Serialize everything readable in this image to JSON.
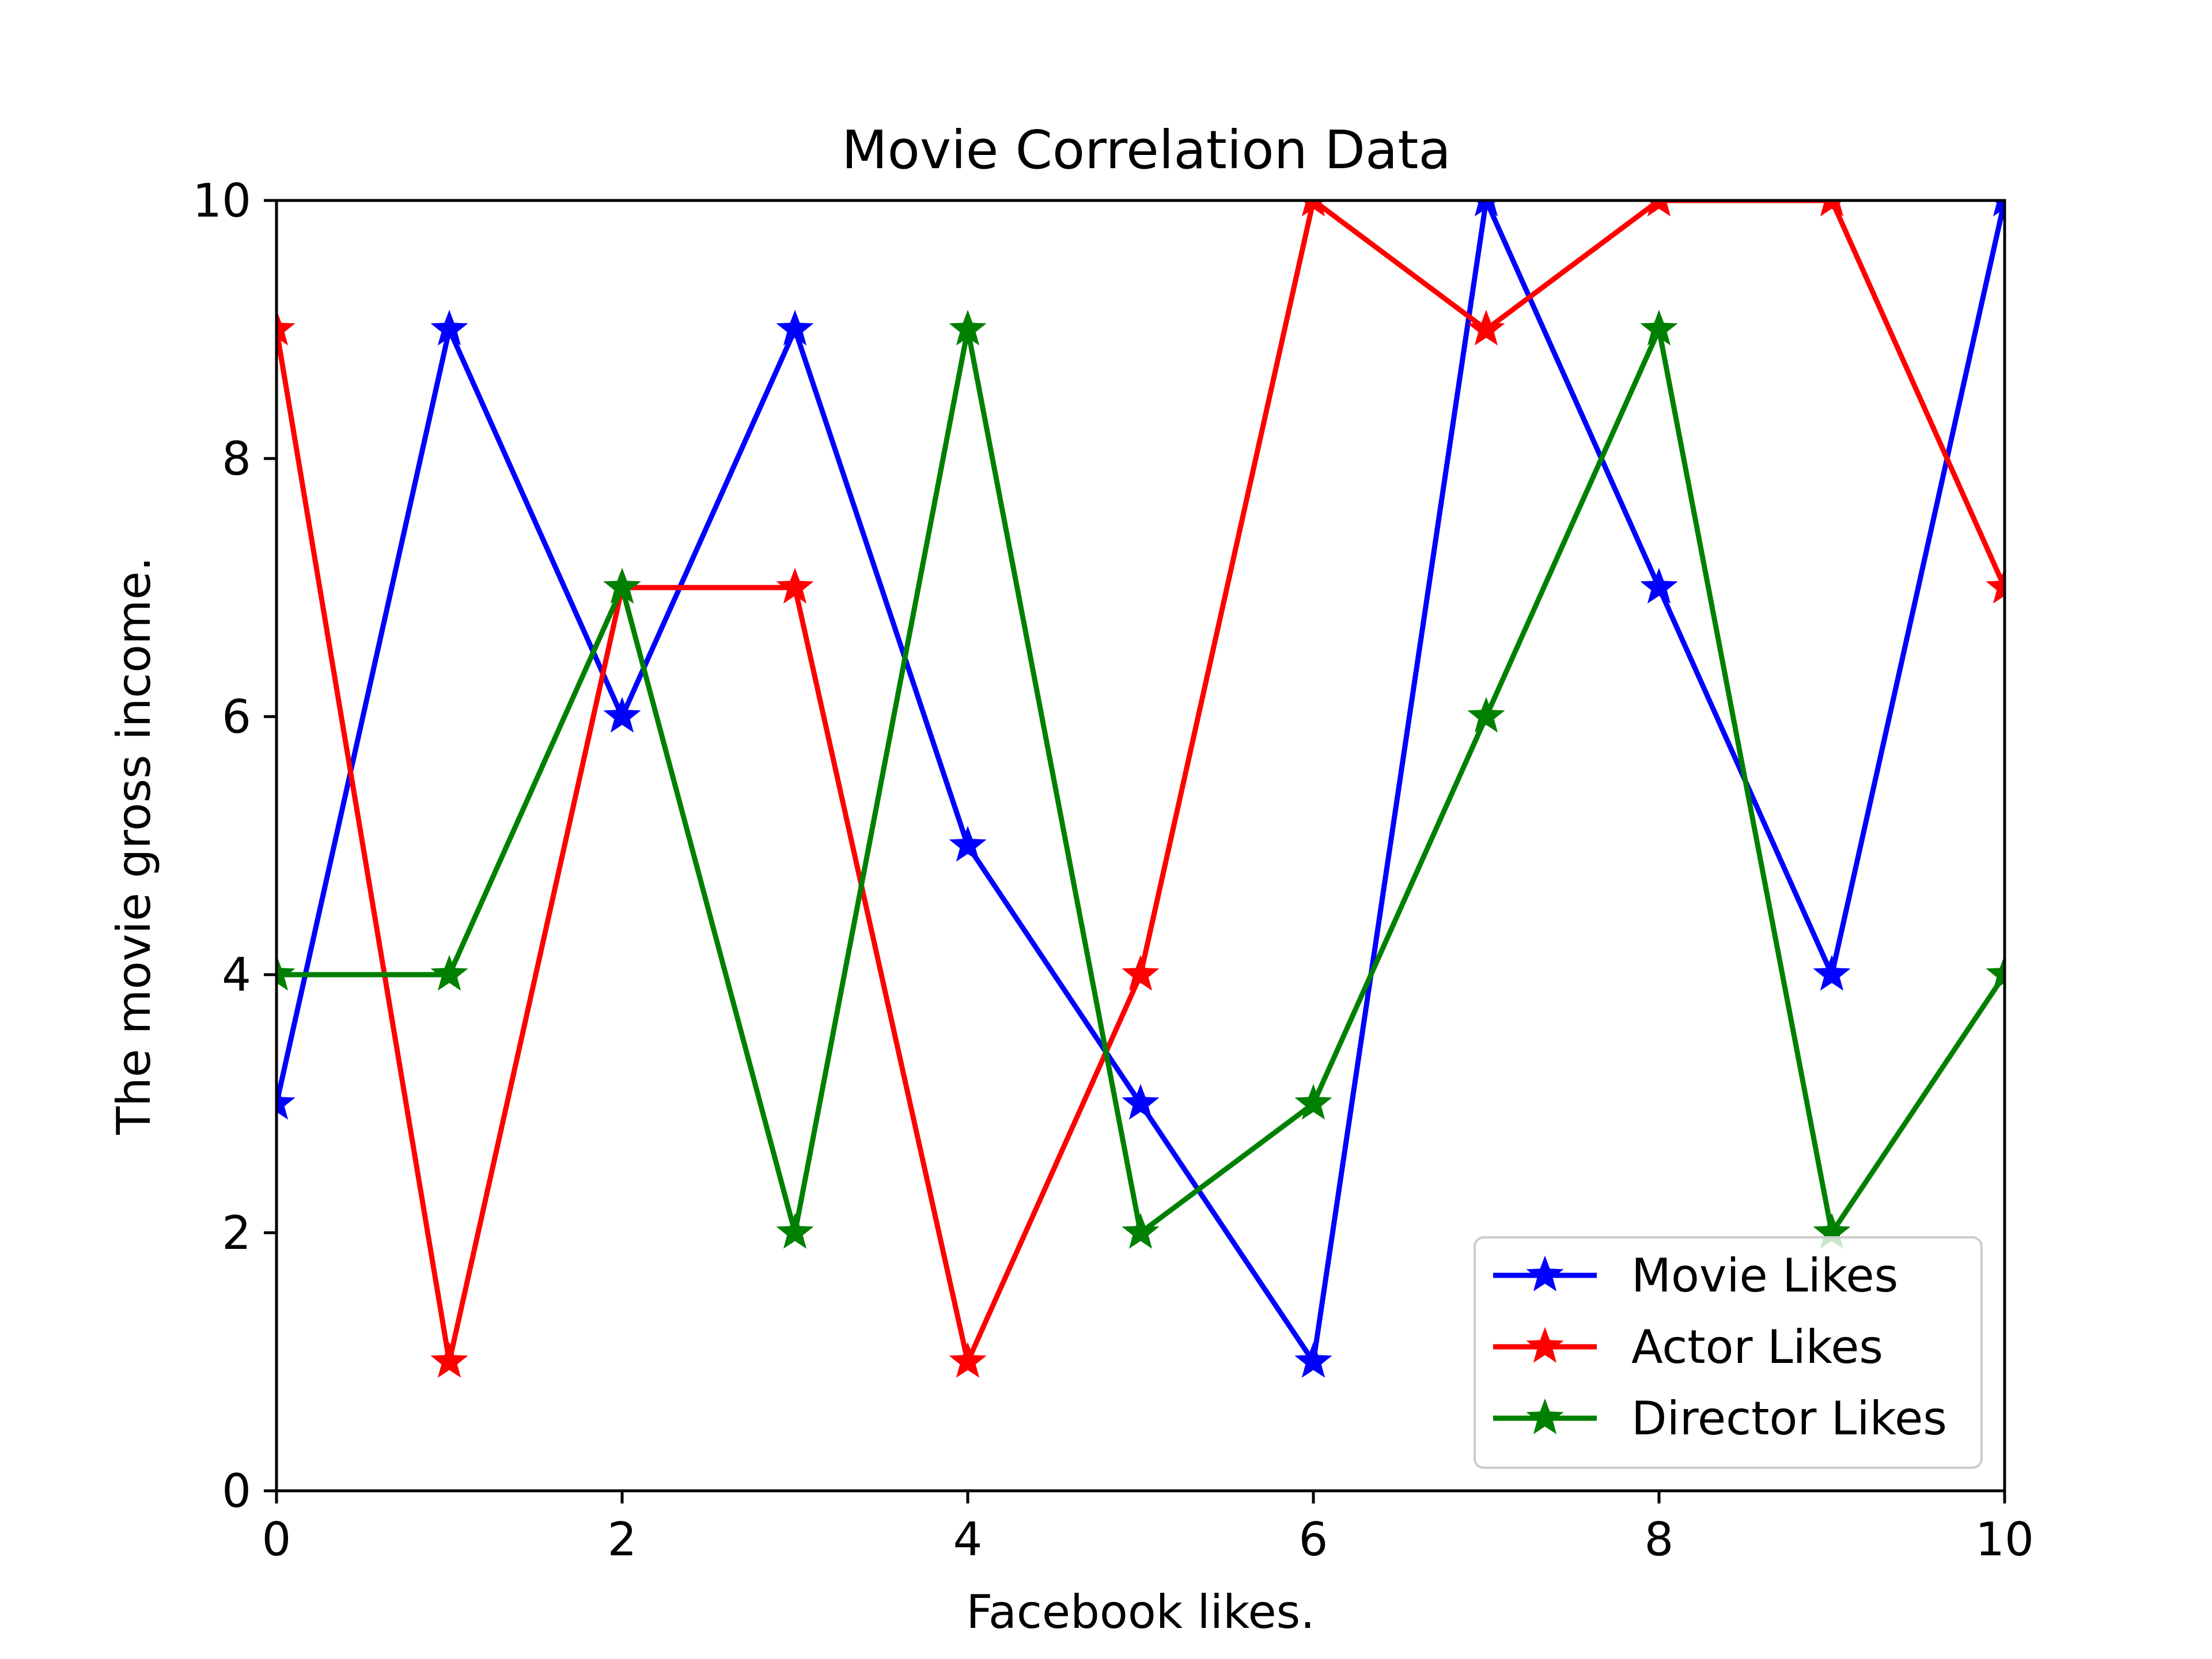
{
  "chart_data": {
    "type": "line",
    "title": "Movie Correlation Data",
    "xlabel": "Facebook likes.",
    "ylabel": "The movie gross income.",
    "xlim": [
      0,
      10
    ],
    "ylim": [
      0,
      10
    ],
    "xticks": [
      0,
      2,
      4,
      6,
      8,
      10
    ],
    "yticks": [
      0,
      2,
      4,
      6,
      8,
      10
    ],
    "grid": false,
    "marker": "star",
    "legend_position": "lower-right",
    "x": [
      0,
      1,
      2,
      3,
      4,
      5,
      6,
      7,
      8,
      9,
      10
    ],
    "series": [
      {
        "name": "Movie Likes",
        "color": "#0000ff",
        "values": [
          3,
          9,
          6,
          9,
          5,
          3,
          1,
          10,
          7,
          4,
          10
        ]
      },
      {
        "name": "Actor Likes",
        "color": "#ff0000",
        "values": [
          9,
          1,
          7,
          7,
          1,
          4,
          10,
          9,
          10,
          10,
          7
        ]
      },
      {
        "name": "Director Likes",
        "color": "#008000",
        "values": [
          4,
          4,
          7,
          2,
          9,
          2,
          3,
          6,
          9,
          2,
          4
        ]
      }
    ]
  }
}
